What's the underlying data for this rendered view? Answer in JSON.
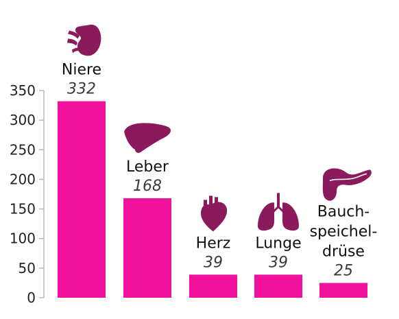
{
  "chart_data": {
    "type": "bar",
    "categories": [
      [
        "Niere"
      ],
      [
        "Leber"
      ],
      [
        "Herz"
      ],
      [
        "Lunge"
      ],
      [
        "Bauch-",
        "speichel-",
        "drüse"
      ]
    ],
    "values": [
      332,
      168,
      39,
      39,
      25
    ],
    "value_labels": [
      "332",
      "168",
      "39",
      "39",
      "25"
    ],
    "icons": [
      "kidney-icon",
      "liver-icon",
      "heart-icon",
      "lungs-icon",
      "pancreas-icon"
    ],
    "ylim": [
      0,
      350
    ],
    "yticks": [
      0,
      50,
      100,
      150,
      200,
      250,
      300,
      350
    ],
    "grid": false,
    "title": "",
    "xlabel": "",
    "ylabel": ""
  },
  "colors": {
    "bar": "#f0129c",
    "icon": "#8a1a5c",
    "axis": "#b8b8b8"
  }
}
